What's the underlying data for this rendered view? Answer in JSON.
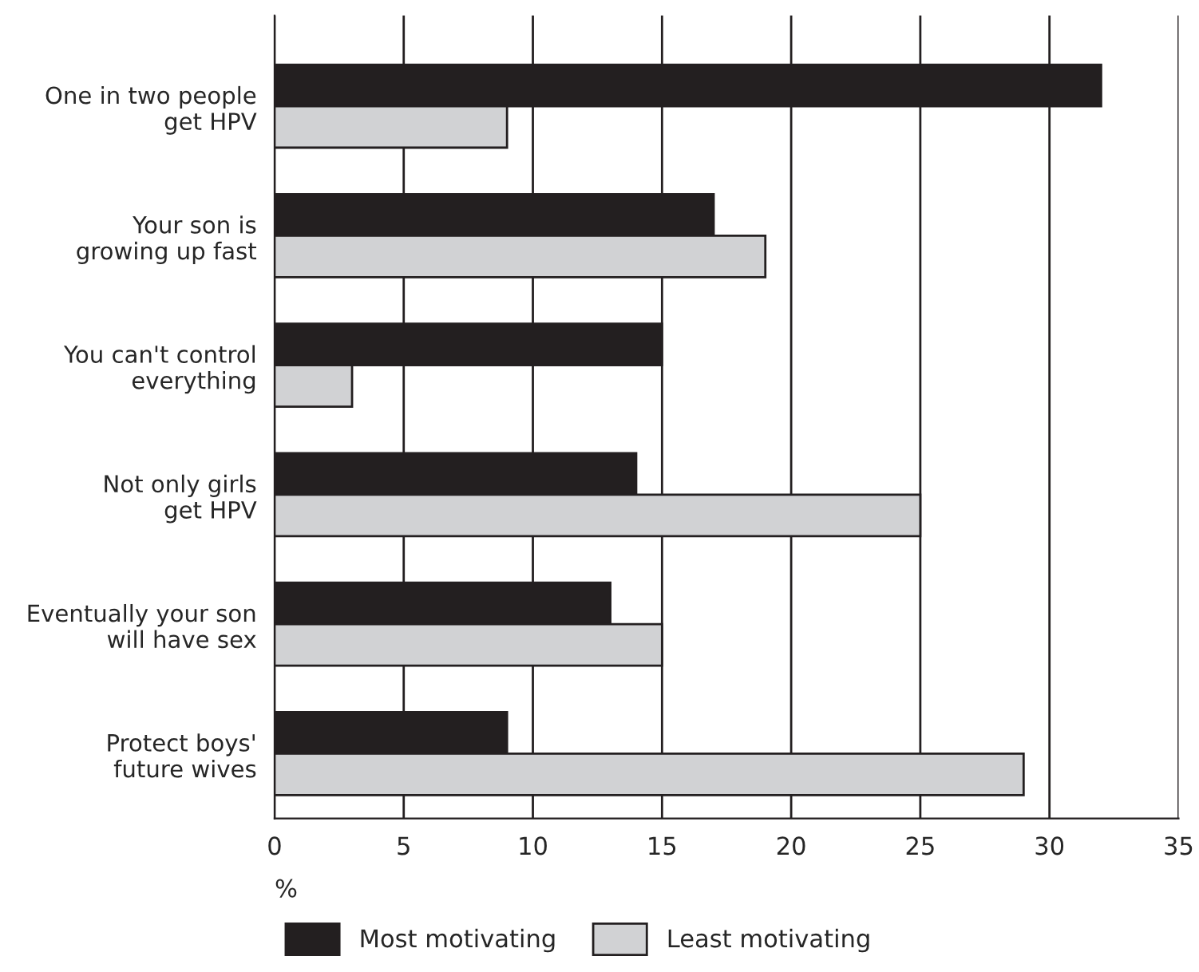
{
  "chart_data": {
    "type": "bar",
    "orientation": "horizontal",
    "xlabel": "%",
    "categories": [
      "One in two people\nget HPV",
      "Your son is\ngrowing up fast",
      "You can't control\neverything",
      "Not only girls\nget HPV",
      "Eventually your son\nwill have sex",
      "Protect boys'\nfuture wives"
    ],
    "series": [
      {
        "name": "Most motivating",
        "color": "#231f20",
        "values": [
          32,
          17,
          15,
          14,
          13,
          9
        ]
      },
      {
        "name": "Least motivating",
        "color": "#d1d2d4",
        "values": [
          9,
          19,
          3,
          25,
          15,
          29
        ]
      }
    ],
    "xlim": [
      0,
      35
    ],
    "xticks": [
      0,
      5,
      10,
      15,
      20,
      25,
      30,
      35
    ],
    "grid": "x",
    "legend": "bottom"
  }
}
